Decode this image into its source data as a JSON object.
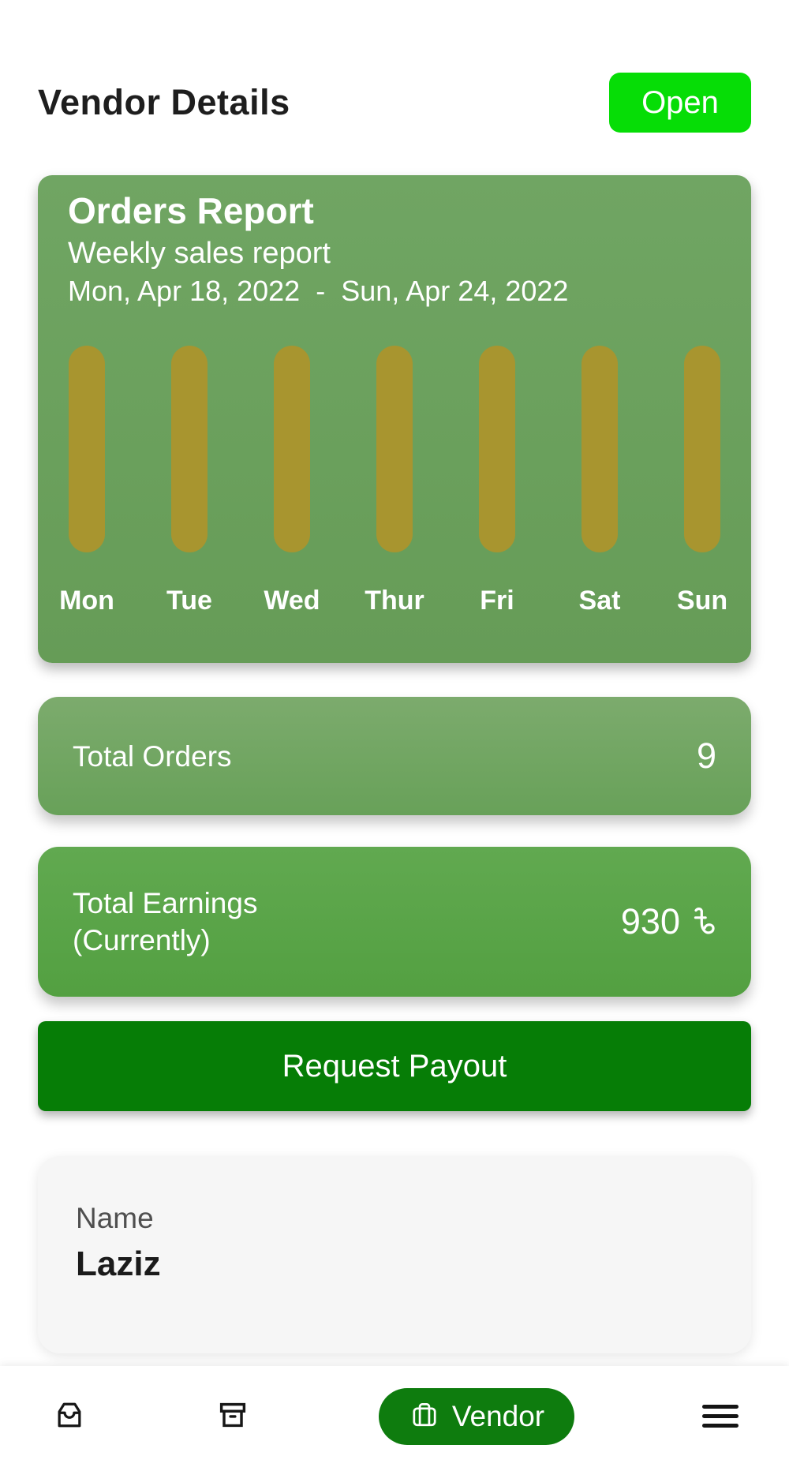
{
  "header": {
    "title": "Vendor Details",
    "open_button_label": "Open",
    "open_button_color": "#06dd06"
  },
  "report_card": {
    "title": "Orders Report",
    "subtitle": "Weekly sales report",
    "date_range": "Mon, Apr 18, 2022  -  Sun, Apr 24, 2022",
    "background_color": "#6ba15e"
  },
  "chart_data": {
    "type": "bar",
    "title": "Orders Report",
    "subtitle": "Weekly sales report",
    "categories": [
      "Mon",
      "Tue",
      "Wed",
      "Thur",
      "Fri",
      "Sat",
      "Sun"
    ],
    "values": [
      1,
      1,
      1,
      1,
      1,
      1,
      1
    ],
    "xlabel": "",
    "ylabel": "",
    "ylim": [
      0,
      1
    ],
    "bar_color": "#a8952f",
    "background_color": "#6ba15e",
    "grid": false,
    "legend": false,
    "note": "all seven day bars are rendered at equal full height; no numeric value axis is shown"
  },
  "stats": {
    "total_orders": {
      "label": "Total Orders",
      "value": "9"
    },
    "total_earnings": {
      "label_line1": "Total Earnings",
      "label_line2": "(Currently)",
      "value": "930",
      "currency_symbol": "৳"
    }
  },
  "actions": {
    "request_payout_label": "Request Payout",
    "request_payout_color": "#067d06"
  },
  "vendor_info": {
    "name_label": "Name",
    "name_value": "Laziz"
  },
  "bottom_nav": {
    "items": [
      {
        "icon": "tray-icon",
        "label": "",
        "active": false
      },
      {
        "icon": "archive-box-icon",
        "label": "",
        "active": false
      },
      {
        "icon": "briefcase-icon",
        "label": "Vendor",
        "active": true
      },
      {
        "icon": "menu-icon",
        "label": "",
        "active": false
      }
    ],
    "active_pill_color": "#0e7c0e"
  }
}
